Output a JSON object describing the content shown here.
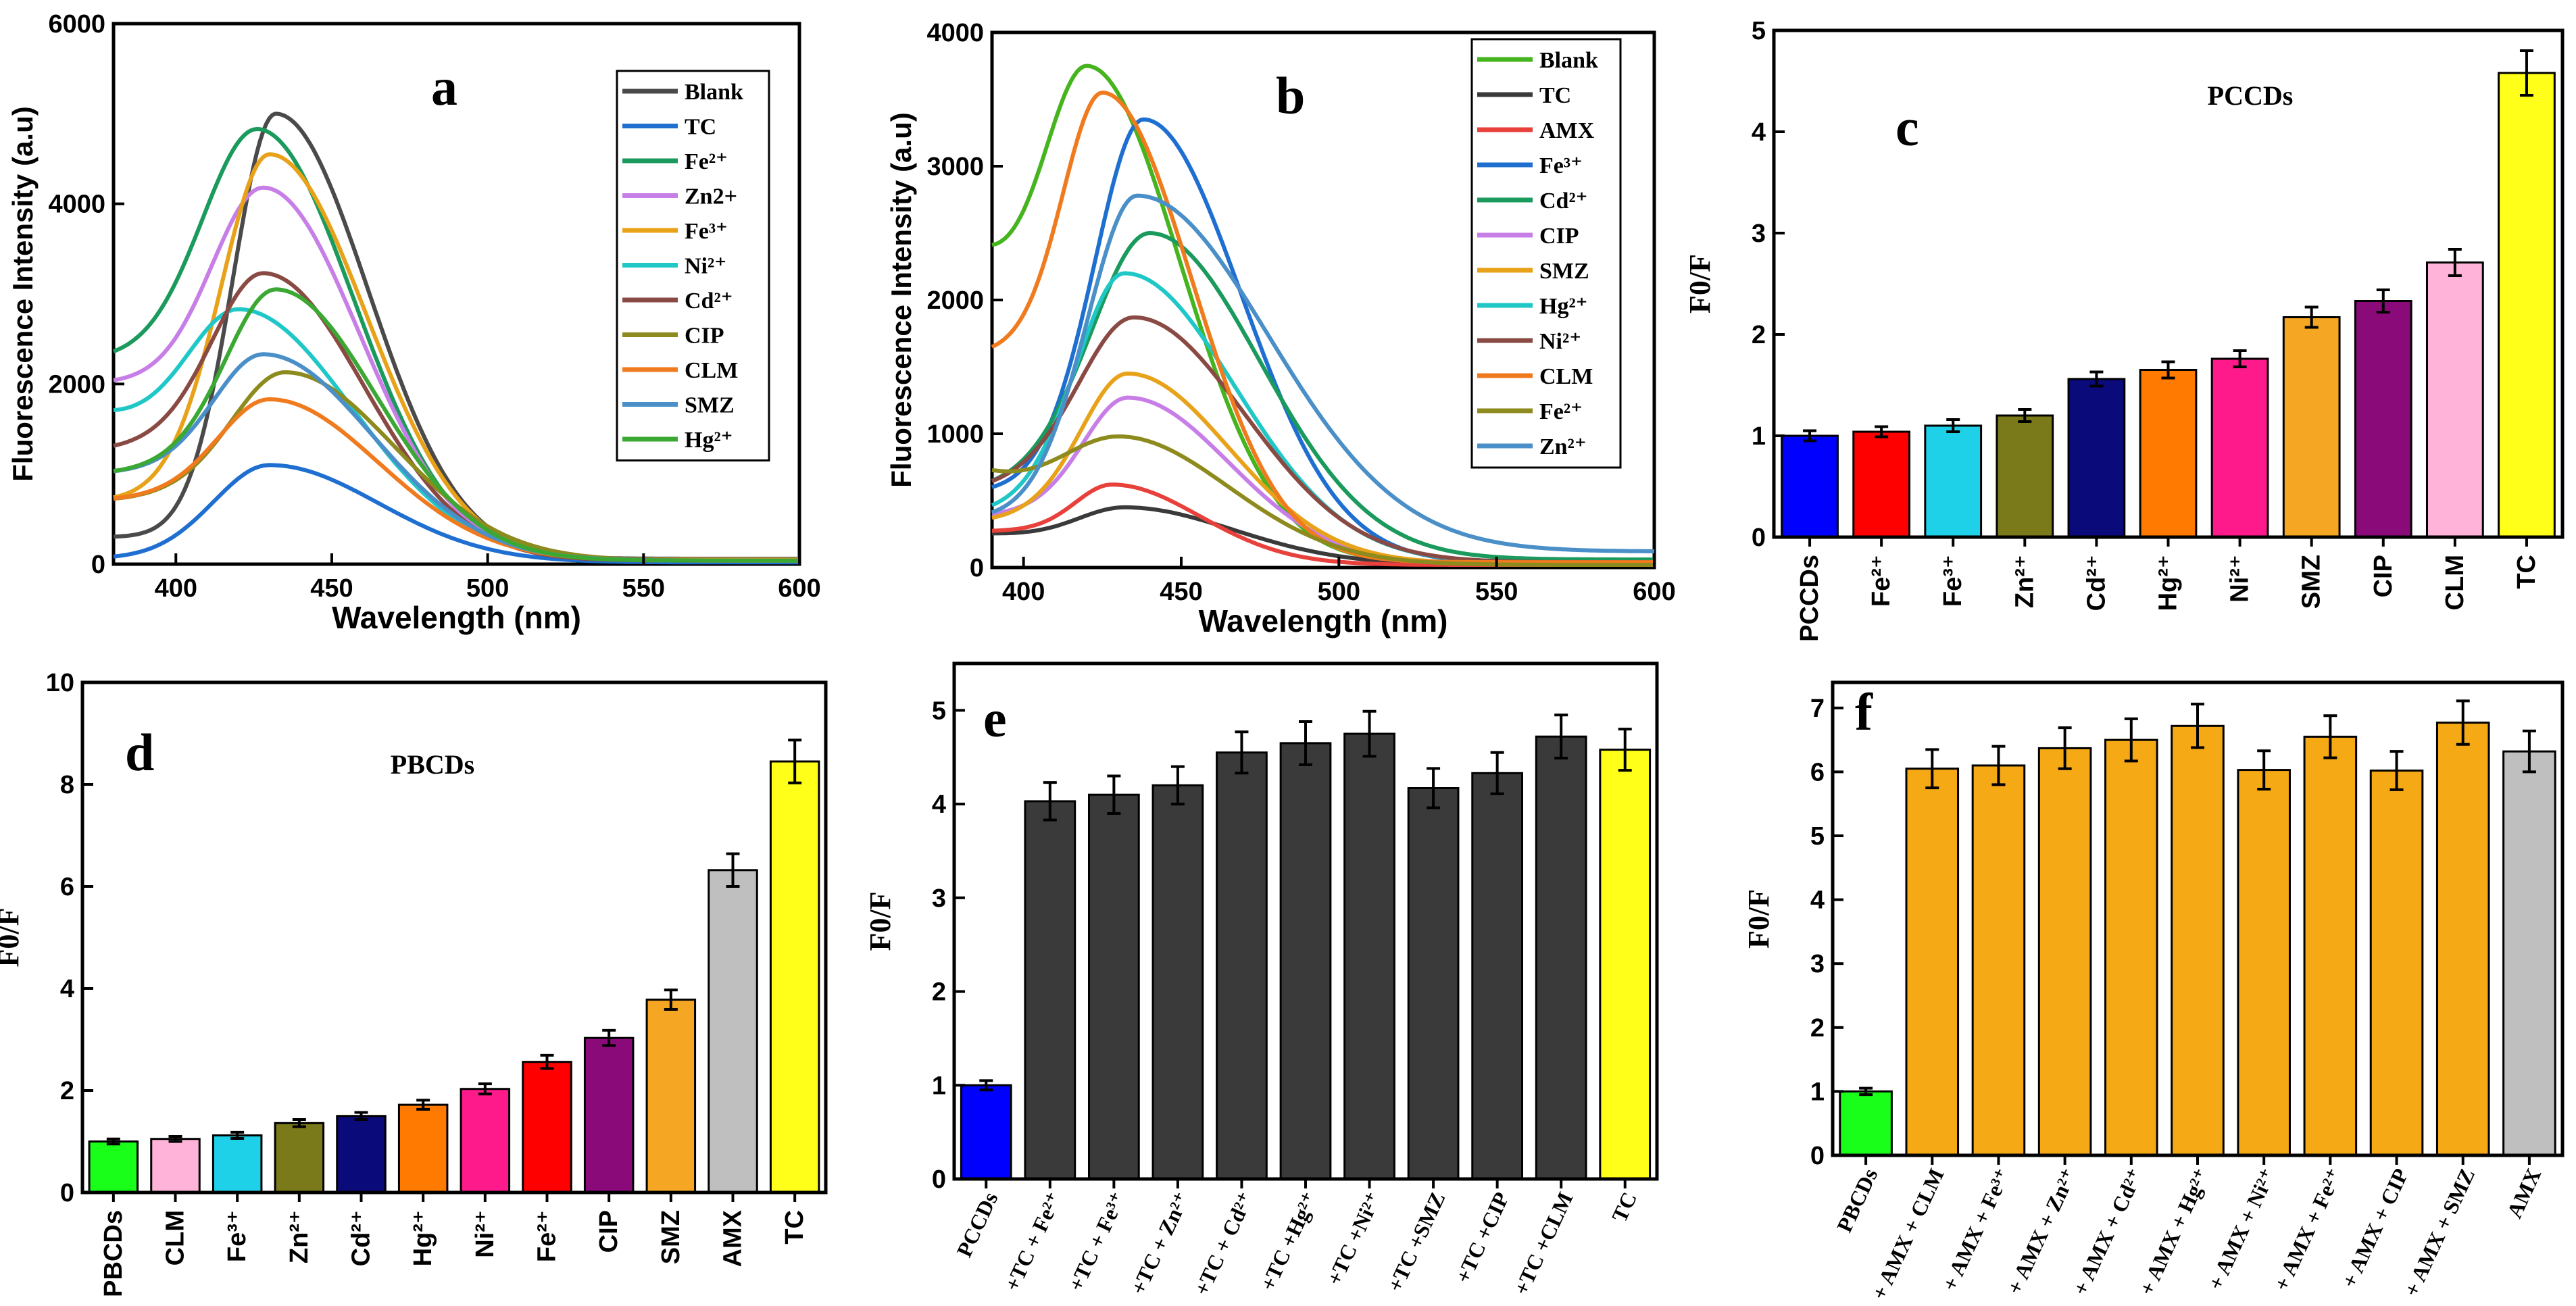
{
  "chart_data": [
    {
      "panel": "a",
      "type": "line",
      "xlabel": "Wavelength (nm)",
      "ylabel": "Fluorescence Intensity (a.u)",
      "xlim": [
        380,
        600
      ],
      "ylim": [
        0,
        6000
      ],
      "xticks": [
        400,
        450,
        500,
        550,
        600
      ],
      "yticks": [
        0,
        2000,
        4000,
        6000
      ],
      "series": [
        {
          "name": "Blank",
          "color": "#4a4a4a",
          "peak_x": 432,
          "peak_y": 5000,
          "start_y": 300,
          "end_y": 60,
          "wl": 20,
          "wr": 42
        },
        {
          "name": "TC",
          "color": "#1f6fd1",
          "peak_x": 430,
          "peak_y": 1100,
          "start_y": 60,
          "end_y": 20,
          "wl": 26,
          "wr": 50
        },
        {
          "name": "Fe2+",
          "color": "#1a9a5c",
          "peak_x": 426,
          "peak_y": 4830,
          "start_y": 2250,
          "end_y": 50,
          "wl": 34,
          "wr": 44
        },
        {
          "name": "Zn2+",
          "color": "#c77ee6",
          "peak_x": 428,
          "peak_y": 4180,
          "start_y": 2000,
          "end_y": 50,
          "wl": 32,
          "wr": 44
        },
        {
          "name": "Fe3+",
          "color": "#e8a21a",
          "peak_x": 430,
          "peak_y": 4550,
          "start_y": 700,
          "end_y": 50,
          "wl": 24,
          "wr": 44
        },
        {
          "name": "Ni2+",
          "color": "#1fc7c7",
          "peak_x": 420,
          "peak_y": 2830,
          "start_y": 1780,
          "end_y": 40,
          "wl": 34,
          "wr": 52
        },
        {
          "name": "Cd2+",
          "color": "#8a4a44",
          "peak_x": 428,
          "peak_y": 3230,
          "start_y": 1250,
          "end_y": 40,
          "wl": 30,
          "wr": 46
        },
        {
          "name": "CIP",
          "color": "#8d8a1e",
          "peak_x": 435,
          "peak_y": 2130,
          "start_y": 700,
          "end_y": 40,
          "wl": 30,
          "wr": 50
        },
        {
          "name": "CLM",
          "color": "#f07a1e",
          "peak_x": 430,
          "peak_y": 1830,
          "start_y": 700,
          "end_y": 40,
          "wl": 30,
          "wr": 50
        },
        {
          "name": "SMZ",
          "color": "#4a8fc7",
          "peak_x": 428,
          "peak_y": 2330,
          "start_y": 1000,
          "end_y": 40,
          "wl": 30,
          "wr": 50
        },
        {
          "name": "Hg2+",
          "color": "#3aa832",
          "peak_x": 432,
          "peak_y": 3050,
          "start_y": 1000,
          "end_y": 40,
          "wl": 28,
          "wr": 46
        }
      ],
      "legend": [
        "Blank",
        "TC",
        "Fe²⁺",
        "Zn2+",
        "Fe³⁺",
        "Ni²⁺",
        "Cd²⁺",
        "CIP",
        "CLM",
        "SMZ",
        "Hg²⁺"
      ],
      "label": "a"
    },
    {
      "panel": "b",
      "type": "line",
      "xlabel": "Wavelength (nm)",
      "ylabel": "Fluorescence Intensity (a.u)",
      "xlim": [
        390,
        600
      ],
      "ylim": [
        0,
        4000
      ],
      "xticks": [
        400,
        450,
        500,
        550,
        600
      ],
      "yticks": [
        0,
        1000,
        2000,
        3000,
        4000
      ],
      "series": [
        {
          "name": "Blank",
          "color": "#45b41e",
          "peak_x": 420,
          "peak_y": 3750,
          "start_y": 2620,
          "end_y": 40,
          "wl": 28,
          "wr": 42
        },
        {
          "name": "TC",
          "color": "#3a3a3a",
          "peak_x": 432,
          "peak_y": 450,
          "start_y": 260,
          "end_y": 20,
          "wl": 30,
          "wr": 50
        },
        {
          "name": "AMX",
          "color": "#e8403a",
          "peak_x": 428,
          "peak_y": 620,
          "start_y": 270,
          "end_y": 20,
          "wl": 22,
          "wr": 40
        },
        {
          "name": "Fe3+",
          "color": "#1f6fd1",
          "peak_x": 438,
          "peak_y": 3350,
          "start_y": 560,
          "end_y": 40,
          "wl": 24,
          "wr": 44
        },
        {
          "name": "Cd2+",
          "color": "#1a9a5c",
          "peak_x": 440,
          "peak_y": 2500,
          "start_y": 560,
          "end_y": 60,
          "wl": 30,
          "wr": 50
        },
        {
          "name": "CIP",
          "color": "#c77ee6",
          "peak_x": 433,
          "peak_y": 1270,
          "start_y": 380,
          "end_y": 30,
          "wl": 24,
          "wr": 46
        },
        {
          "name": "SMZ",
          "color": "#e8a21a",
          "peak_x": 433,
          "peak_y": 1450,
          "start_y": 340,
          "end_y": 30,
          "wl": 24,
          "wr": 46
        },
        {
          "name": "Hg2+",
          "color": "#1fc7c7",
          "peak_x": 432,
          "peak_y": 2200,
          "start_y": 400,
          "end_y": 40,
          "wl": 24,
          "wr": 50
        },
        {
          "name": "Ni2+",
          "color": "#8a4a44",
          "peak_x": 435,
          "peak_y": 1870,
          "start_y": 560,
          "end_y": 40,
          "wl": 30,
          "wr": 50
        },
        {
          "name": "CLM",
          "color": "#f07a1e",
          "peak_x": 425,
          "peak_y": 3550,
          "start_y": 1580,
          "end_y": 40,
          "wl": 24,
          "wr": 40
        },
        {
          "name": "Fe2+",
          "color": "#8d8a1e",
          "peak_x": 430,
          "peak_y": 980,
          "start_y": 920,
          "end_y": 20,
          "wl": 40,
          "wr": 50
        },
        {
          "name": "Zn2+",
          "color": "#4a8fc7",
          "peak_x": 436,
          "peak_y": 2780,
          "start_y": 360,
          "end_y": 120,
          "wl": 24,
          "wr": 60
        }
      ],
      "legend": [
        "Blank",
        "TC",
        "AMX",
        "Fe³⁺",
        "Cd²⁺",
        "CIP",
        "SMZ",
        "Hg²⁺",
        "Ni²⁺",
        "CLM",
        "Fe²⁺",
        "Zn²⁺"
      ],
      "label": "b"
    },
    {
      "panel": "c",
      "type": "bar",
      "title": "PCCDs",
      "ylabel": "F0/F",
      "ylim": [
        0,
        5
      ],
      "yticks": [
        0,
        1,
        2,
        3,
        4,
        5
      ],
      "categories": [
        "PCCDs",
        "Fe2+",
        "Fe3+",
        "Zn2+",
        "Cd2+",
        "Hg2+",
        "Ni2+",
        "SMZ",
        "CIP",
        "CLM",
        "TC"
      ],
      "category_labels": [
        "PCCDs",
        "Fe²⁺",
        "Fe³⁺",
        "Zn²⁺",
        "Cd²⁺",
        "Hg²⁺",
        "Ni²⁺",
        "SMZ",
        "CIP",
        "CLM",
        "TC"
      ],
      "values": [
        1.0,
        1.04,
        1.1,
        1.2,
        1.56,
        1.65,
        1.76,
        2.17,
        2.33,
        2.71,
        4.58
      ],
      "errors": [
        0.05,
        0.05,
        0.06,
        0.06,
        0.07,
        0.08,
        0.08,
        0.1,
        0.11,
        0.13,
        0.22
      ],
      "colors": [
        "#0000ff",
        "#ff0000",
        "#1fd1e8",
        "#7a7a1a",
        "#0a0a7a",
        "#ff7a00",
        "#ff1a8c",
        "#f5a623",
        "#8a0a7a",
        "#ffb3d9",
        "#ffff1a"
      ],
      "label": "c"
    },
    {
      "panel": "d",
      "type": "bar",
      "title": "PBCDs",
      "ylabel": "F0/F",
      "ylim": [
        0,
        10
      ],
      "yticks": [
        0,
        2,
        4,
        6,
        8,
        10
      ],
      "categories": [
        "PBCDs",
        "CLM",
        "Fe3+",
        "Zn2+",
        "Cd2+",
        "Hg2+",
        "Ni2+",
        "Fe2+",
        "CIP",
        "SMZ",
        "AMX",
        "TC"
      ],
      "category_labels": [
        "PBCDs",
        "CLM",
        "Fe³⁺",
        "Zn²⁺",
        "Cd²⁺",
        "Hg²⁺",
        "Ni²⁺",
        "Fe²⁺",
        "CIP",
        "SMZ",
        "AMX",
        "TC"
      ],
      "values": [
        1.0,
        1.05,
        1.12,
        1.36,
        1.5,
        1.72,
        2.03,
        2.56,
        3.03,
        3.78,
        6.32,
        8.45
      ],
      "errors": [
        0.05,
        0.05,
        0.06,
        0.07,
        0.07,
        0.09,
        0.1,
        0.13,
        0.15,
        0.19,
        0.32,
        0.42
      ],
      "colors": [
        "#1aff1a",
        "#ffb3d9",
        "#1fd1e8",
        "#7a7a1a",
        "#0a0a7a",
        "#ff7a00",
        "#ff1a8c",
        "#ff0000",
        "#8a0a7a",
        "#f5a623",
        "#bfbfbf",
        "#ffff1a"
      ],
      "label": "d"
    },
    {
      "panel": "e",
      "type": "bar",
      "ylabel": "F0/F",
      "ylim": [
        0,
        5.5
      ],
      "yticks": [
        0,
        1,
        2,
        3,
        4,
        5
      ],
      "categories": [
        "PCCDs",
        "+TC + Fe2+",
        "+TC + Fe3+",
        "+TC + Zn2+",
        "+TC + Cd2+",
        "+TC +Hg2+",
        "+TC +Ni2+",
        "+TC +SMZ",
        "+TC +CIP",
        "+TC +CLM",
        "TC"
      ],
      "category_labels": [
        "PCCDs",
        "+TC + Fe²⁺",
        "+TC + Fe³⁺",
        "+TC + Zn²⁺",
        "+TC + Cd²⁺",
        "+TC +Hg²⁺",
        "+TC +Ni²⁺",
        "+TC +SMZ",
        "+TC +CIP",
        "+TC +CLM",
        "TC"
      ],
      "values": [
        1.0,
        4.03,
        4.1,
        4.2,
        4.55,
        4.65,
        4.75,
        4.17,
        4.33,
        4.72,
        4.58
      ],
      "errors": [
        0.05,
        0.2,
        0.2,
        0.2,
        0.22,
        0.23,
        0.24,
        0.21,
        0.22,
        0.23,
        0.22
      ],
      "colors": [
        "#0000ff",
        "#3a3a3a",
        "#3a3a3a",
        "#3a3a3a",
        "#3a3a3a",
        "#3a3a3a",
        "#3a3a3a",
        "#3a3a3a",
        "#3a3a3a",
        "#3a3a3a",
        "#ffff1a"
      ],
      "label": "e"
    },
    {
      "panel": "f",
      "type": "bar",
      "ylabel": "F0/F",
      "ylim": [
        0,
        7.4
      ],
      "yticks": [
        0,
        1,
        2,
        3,
        4,
        5,
        6,
        7
      ],
      "categories": [
        "PBCDs",
        "+ AMX + CLM",
        "+ AMX + Fe3+",
        "+ AMX + Zn2+",
        "+ AMX + Cd2+",
        "+ AMX + Hg2+",
        "+ AMX + Ni2+",
        "+ AMX + Fe2+",
        "+ AMX + CIP",
        "+ AMX + SMZ",
        "AMX"
      ],
      "category_labels": [
        "PBCDs",
        "+ AMX + CLM",
        "+ AMX + Fe³⁺",
        "+ AMX + Zn²⁺",
        "+ AMX + Cd²⁺",
        "+ AMX + Hg²⁺",
        "+ AMX + Ni²⁺",
        "+ AMX + Fe²⁺",
        "+ AMX + CIP",
        "+ AMX + SMZ",
        "AMX"
      ],
      "values": [
        1.0,
        6.05,
        6.1,
        6.37,
        6.5,
        6.72,
        6.03,
        6.55,
        6.02,
        6.77,
        6.32
      ],
      "errors": [
        0.05,
        0.3,
        0.3,
        0.32,
        0.33,
        0.34,
        0.3,
        0.33,
        0.3,
        0.34,
        0.32
      ],
      "colors": [
        "#1aff1a",
        "#f5a915",
        "#f5a915",
        "#f5a915",
        "#f5a915",
        "#f5a915",
        "#f5a915",
        "#f5a915",
        "#f5a915",
        "#f5a915",
        "#bfbfbf"
      ],
      "label": "f"
    }
  ]
}
